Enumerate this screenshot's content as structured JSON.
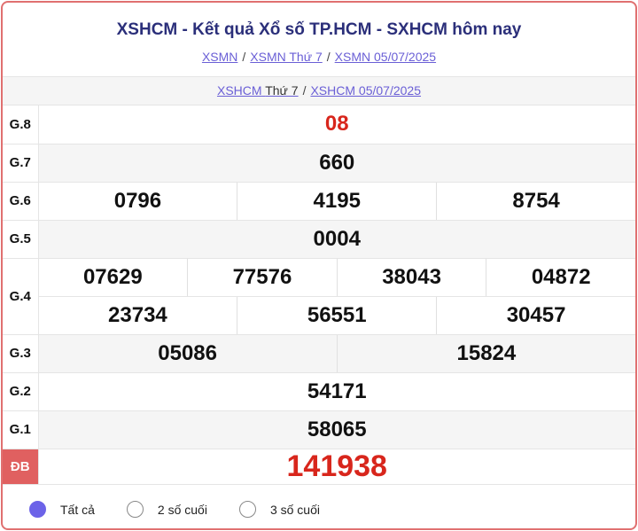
{
  "header": {
    "title": "XSHCM - Kết quả Xổ số TP.HCM - SXHCM hôm nay",
    "breadcrumbs": [
      "XSMN",
      "XSMN Thứ 7",
      "XSMN 05/07/2025"
    ],
    "sub_links": {
      "a": "XSHCM",
      "a_suffix": "Thứ 7",
      "b": "XSHCM 05/07/2025"
    }
  },
  "prizes": {
    "g8": {
      "label": "G.8",
      "values": [
        "08"
      ]
    },
    "g7": {
      "label": "G.7",
      "values": [
        "660"
      ]
    },
    "g6": {
      "label": "G.6",
      "values": [
        "0796",
        "4195",
        "8754"
      ]
    },
    "g5": {
      "label": "G.5",
      "values": [
        "0004"
      ]
    },
    "g4": {
      "label": "G.4",
      "values": [
        "07629",
        "77576",
        "38043",
        "04872",
        "23734",
        "56551",
        "30457"
      ]
    },
    "g3": {
      "label": "G.3",
      "values": [
        "05086",
        "15824"
      ]
    },
    "g2": {
      "label": "G.2",
      "values": [
        "54171"
      ]
    },
    "g1": {
      "label": "G.1",
      "values": [
        "58065"
      ]
    },
    "db": {
      "label": "ĐB",
      "values": [
        "141938"
      ]
    }
  },
  "filters": [
    {
      "label": "Tất cả",
      "selected": true
    },
    {
      "label": "2 số cuối",
      "selected": false
    },
    {
      "label": "3 số cuối",
      "selected": false
    }
  ],
  "colors": {
    "accent": "#6c63e8",
    "prize_red": "#d8261c",
    "border": "#e07070"
  }
}
